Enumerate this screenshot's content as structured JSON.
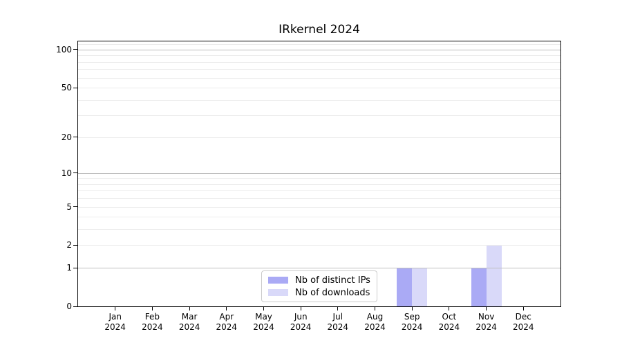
{
  "title": "IRkernel 2024",
  "chart_data": {
    "type": "bar",
    "title": "IRkernel 2024",
    "categories": [
      "Jan\n2024",
      "Feb\n2024",
      "Mar\n2024",
      "Apr\n2024",
      "May\n2024",
      "Jun\n2024",
      "Jul\n2024",
      "Aug\n2024",
      "Sep\n2024",
      "Oct\n2024",
      "Nov\n2024",
      "Dec\n2024"
    ],
    "series": [
      {
        "name": "Nb of distinct IPs",
        "color": "#aaaaf5",
        "values": [
          0,
          0,
          0,
          0,
          0,
          0,
          0,
          0,
          1,
          0,
          1,
          0
        ]
      },
      {
        "name": "Nb of downloads",
        "color": "#d9d9f9",
        "values": [
          0,
          0,
          0,
          0,
          0,
          0,
          0,
          0,
          1,
          0,
          2,
          0
        ]
      }
    ],
    "xlabel": "",
    "ylabel": "",
    "y_scale": "log10(1+v)",
    "y_ticks": [
      0,
      1,
      2,
      5,
      10,
      20,
      50,
      100
    ],
    "ylim": [
      0,
      115
    ],
    "grid": true,
    "gridlines": {
      "major": [
        1,
        10,
        100
      ],
      "minor": [
        2,
        3,
        4,
        5,
        6,
        7,
        8,
        9,
        20,
        30,
        40,
        50,
        60,
        70,
        80,
        90,
        110
      ]
    },
    "legend_position": "lower center",
    "colors": {
      "axis": "#000000",
      "major_grid": "#bdbdbd",
      "minor_grid": "#ececec",
      "background": "#ffffff",
      "text": "#000000",
      "legend_border": "#cbcbcb"
    }
  }
}
